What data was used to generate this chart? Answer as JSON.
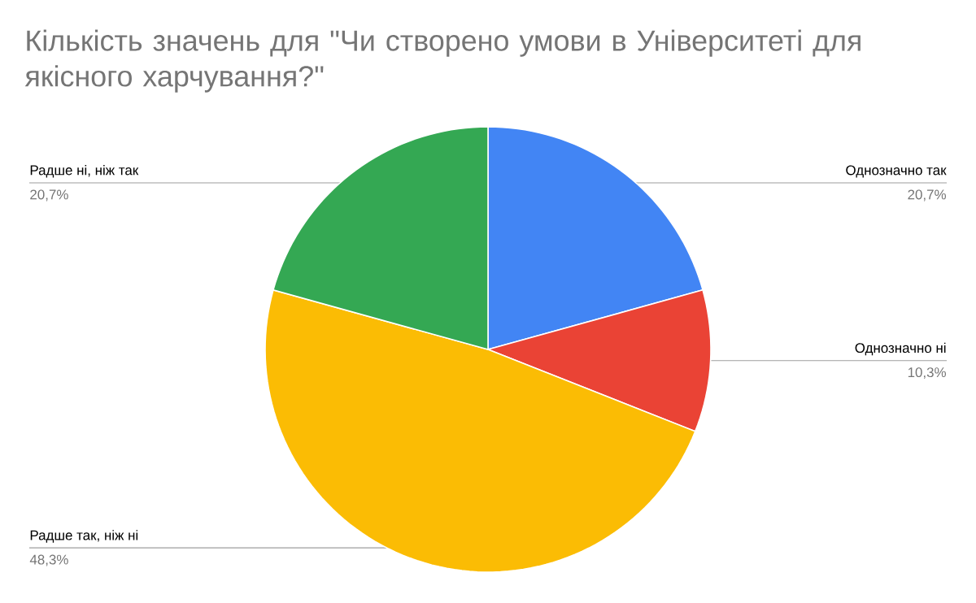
{
  "chart_data": {
    "type": "pie",
    "title": "Кількість значень для \"Чи створено умови в Університеті для якісного харчування?\"",
    "categories": [
      "Однозначно так",
      "Однозначно ні",
      "Радше так, ніж ні",
      "Радше ні, ніж так"
    ],
    "values": [
      20.7,
      10.3,
      48.3,
      20.7
    ],
    "value_labels": [
      "20,7%",
      "10,3%",
      "48,3%",
      "20,7%"
    ],
    "colors": [
      "#4285f4",
      "#ea4335",
      "#fbbc04",
      "#34a853"
    ]
  }
}
